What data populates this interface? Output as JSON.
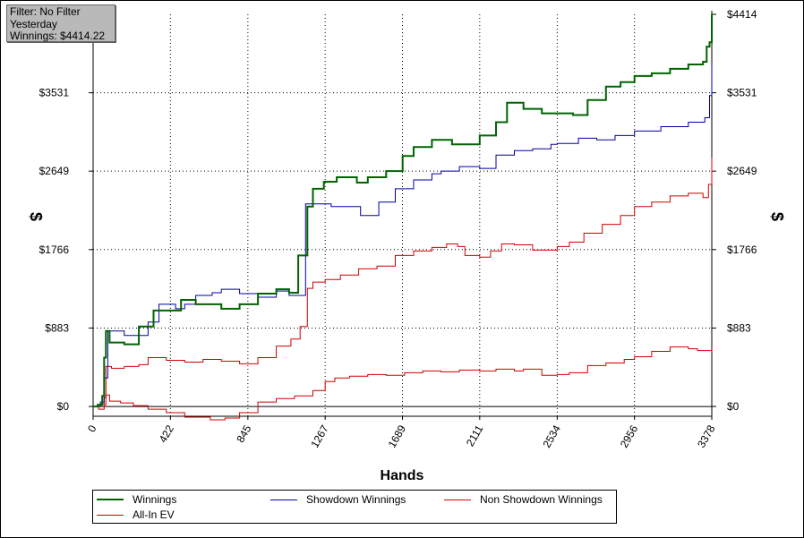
{
  "filter_box": {
    "line1": "Filter: No Filter",
    "line2": "Yesterday",
    "line3": "Winnings: $4414.22"
  },
  "chart_data": {
    "type": "line",
    "xlabel": "Hands",
    "ylabel_left": "$",
    "ylabel_right": "$",
    "xlim": [
      0,
      3378
    ],
    "ylim": [
      -110,
      4414
    ],
    "x_ticks": [
      "0",
      "422",
      "845",
      "1267",
      "1689",
      "2111",
      "2534",
      "2956",
      "3378"
    ],
    "y_ticks": [
      "$0",
      "$883",
      "$1766",
      "$2649",
      "$3531",
      "$4414"
    ],
    "y_tick_values": [
      0,
      883,
      1766,
      2649,
      3531,
      4414
    ],
    "grid": true,
    "legend_position": "bottom",
    "series": [
      {
        "name": "Winnings",
        "color": "#006400",
        "points": [
          [
            0,
            0
          ],
          [
            25,
            20
          ],
          [
            50,
            120
          ],
          [
            60,
            550
          ],
          [
            70,
            850
          ],
          [
            90,
            720
          ],
          [
            170,
            700
          ],
          [
            250,
            900
          ],
          [
            330,
            1080
          ],
          [
            420,
            1080
          ],
          [
            480,
            1200
          ],
          [
            560,
            1150
          ],
          [
            700,
            1100
          ],
          [
            800,
            1150
          ],
          [
            900,
            1270
          ],
          [
            1000,
            1320
          ],
          [
            1070,
            1280
          ],
          [
            1120,
            1700
          ],
          [
            1170,
            2250
          ],
          [
            1200,
            2450
          ],
          [
            1260,
            2530
          ],
          [
            1330,
            2580
          ],
          [
            1440,
            2520
          ],
          [
            1500,
            2580
          ],
          [
            1600,
            2650
          ],
          [
            1690,
            2820
          ],
          [
            1750,
            2920
          ],
          [
            1850,
            3000
          ],
          [
            1960,
            2950
          ],
          [
            2020,
            2950
          ],
          [
            2111,
            3050
          ],
          [
            2200,
            3200
          ],
          [
            2260,
            3420
          ],
          [
            2350,
            3350
          ],
          [
            2450,
            3300
          ],
          [
            2534,
            3300
          ],
          [
            2620,
            3280
          ],
          [
            2700,
            3450
          ],
          [
            2800,
            3600
          ],
          [
            2880,
            3650
          ],
          [
            2956,
            3720
          ],
          [
            3050,
            3750
          ],
          [
            3150,
            3800
          ],
          [
            3250,
            3850
          ],
          [
            3330,
            3880
          ],
          [
            3350,
            4050
          ],
          [
            3366,
            4100
          ],
          [
            3378,
            4414
          ]
        ]
      },
      {
        "name": "Showdown Winnings",
        "color": "#0000a0",
        "points": [
          [
            0,
            0
          ],
          [
            40,
            50
          ],
          [
            60,
            320
          ],
          [
            80,
            850
          ],
          [
            170,
            800
          ],
          [
            300,
            950
          ],
          [
            360,
            1150
          ],
          [
            450,
            1100
          ],
          [
            500,
            1150
          ],
          [
            560,
            1250
          ],
          [
            650,
            1280
          ],
          [
            700,
            1320
          ],
          [
            800,
            1270
          ],
          [
            900,
            1230
          ],
          [
            1000,
            1300
          ],
          [
            1070,
            1250
          ],
          [
            1160,
            2280
          ],
          [
            1300,
            2250
          ],
          [
            1460,
            2150
          ],
          [
            1560,
            2300
          ],
          [
            1650,
            2450
          ],
          [
            1750,
            2550
          ],
          [
            1850,
            2620
          ],
          [
            1900,
            2650
          ],
          [
            2000,
            2700
          ],
          [
            2111,
            2680
          ],
          [
            2200,
            2830
          ],
          [
            2300,
            2880
          ],
          [
            2400,
            2900
          ],
          [
            2500,
            2950
          ],
          [
            2534,
            2960
          ],
          [
            2650,
            3020
          ],
          [
            2750,
            3000
          ],
          [
            2850,
            3050
          ],
          [
            2956,
            3100
          ],
          [
            3100,
            3150
          ],
          [
            3250,
            3200
          ],
          [
            3340,
            3250
          ],
          [
            3366,
            3500
          ],
          [
            3378,
            3850
          ]
        ]
      },
      {
        "name": "Non Showdown Winnings",
        "color": "#d00000",
        "points": [
          [
            0,
            0
          ],
          [
            30,
            -30
          ],
          [
            60,
            20
          ],
          [
            70,
            130
          ],
          [
            90,
            60
          ],
          [
            150,
            40
          ],
          [
            220,
            10
          ],
          [
            300,
            -30
          ],
          [
            400,
            -70
          ],
          [
            500,
            -120
          ],
          [
            560,
            -120
          ],
          [
            640,
            -150
          ],
          [
            720,
            -130
          ],
          [
            800,
            -70
          ],
          [
            900,
            50
          ],
          [
            1000,
            90
          ],
          [
            1100,
            120
          ],
          [
            1200,
            180
          ],
          [
            1267,
            280
          ],
          [
            1320,
            320
          ],
          [
            1400,
            340
          ],
          [
            1500,
            360
          ],
          [
            1600,
            350
          ],
          [
            1700,
            380
          ],
          [
            1800,
            400
          ],
          [
            1900,
            390
          ],
          [
            2000,
            410
          ],
          [
            2111,
            400
          ],
          [
            2200,
            420
          ],
          [
            2300,
            400
          ],
          [
            2350,
            420
          ],
          [
            2450,
            350
          ],
          [
            2534,
            360
          ],
          [
            2600,
            380
          ],
          [
            2700,
            460
          ],
          [
            2800,
            490
          ],
          [
            2900,
            530
          ],
          [
            2956,
            560
          ],
          [
            3050,
            620
          ],
          [
            3150,
            670
          ],
          [
            3250,
            650
          ],
          [
            3300,
            630
          ],
          [
            3378,
            620
          ]
        ]
      },
      {
        "name": "All-In EV",
        "color": "#d00000",
        "points": [
          [
            0,
            0
          ],
          [
            40,
            30
          ],
          [
            60,
            100
          ],
          [
            70,
            450
          ],
          [
            100,
            430
          ],
          [
            170,
            450
          ],
          [
            250,
            470
          ],
          [
            300,
            550
          ],
          [
            400,
            520
          ],
          [
            500,
            500
          ],
          [
            600,
            530
          ],
          [
            700,
            510
          ],
          [
            800,
            480
          ],
          [
            900,
            550
          ],
          [
            1000,
            680
          ],
          [
            1080,
            760
          ],
          [
            1130,
            900
          ],
          [
            1170,
            1330
          ],
          [
            1200,
            1400
          ],
          [
            1267,
            1430
          ],
          [
            1350,
            1480
          ],
          [
            1450,
            1550
          ],
          [
            1550,
            1580
          ],
          [
            1650,
            1700
          ],
          [
            1750,
            1750
          ],
          [
            1850,
            1790
          ],
          [
            1930,
            1830
          ],
          [
            1990,
            1800
          ],
          [
            2030,
            1700
          ],
          [
            2111,
            1680
          ],
          [
            2170,
            1750
          ],
          [
            2230,
            1830
          ],
          [
            2300,
            1820
          ],
          [
            2400,
            1760
          ],
          [
            2500,
            1760
          ],
          [
            2534,
            1800
          ],
          [
            2600,
            1850
          ],
          [
            2680,
            1950
          ],
          [
            2780,
            2050
          ],
          [
            2880,
            2150
          ],
          [
            2956,
            2250
          ],
          [
            3050,
            2300
          ],
          [
            3150,
            2370
          ],
          [
            3250,
            2400
          ],
          [
            3330,
            2350
          ],
          [
            3360,
            2500
          ],
          [
            3378,
            2800
          ]
        ]
      }
    ]
  }
}
